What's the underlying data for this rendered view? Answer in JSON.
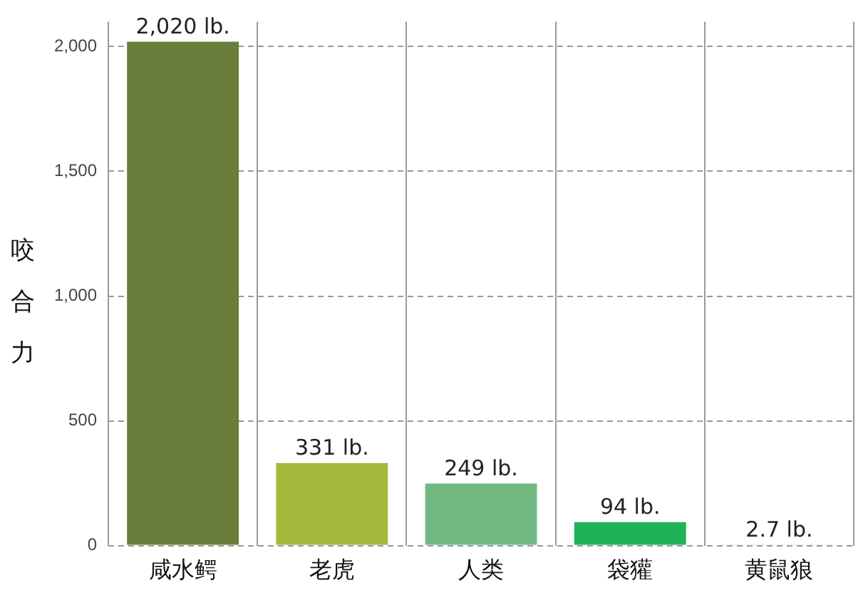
{
  "chart_data": {
    "type": "bar",
    "ylabel": "咬合力",
    "categories": [
      "咸水鳄",
      "老虎",
      "人类",
      "袋獾",
      "黄鼠狼"
    ],
    "values": [
      2020,
      331,
      249,
      94,
      2.7
    ],
    "colors": [
      "#6b7d3a",
      "#a3b83c",
      "#72b882",
      "#1fb257",
      "#9fd08f"
    ],
    "value_labels": [
      "2,020 lb.",
      "331 lb.",
      "249 lb.",
      "94 lb.",
      "2.7 lb."
    ],
    "ylim": [
      0,
      2100
    ],
    "yticks": [
      0,
      {
        "value": 500,
        "label": "500"
      },
      {
        "value": 1000,
        "label": "1,000"
      },
      {
        "value": 1500,
        "label": "1,500"
      },
      {
        "value": 2000,
        "label": "2,000"
      }
    ],
    "grid": true,
    "legend": false
  }
}
